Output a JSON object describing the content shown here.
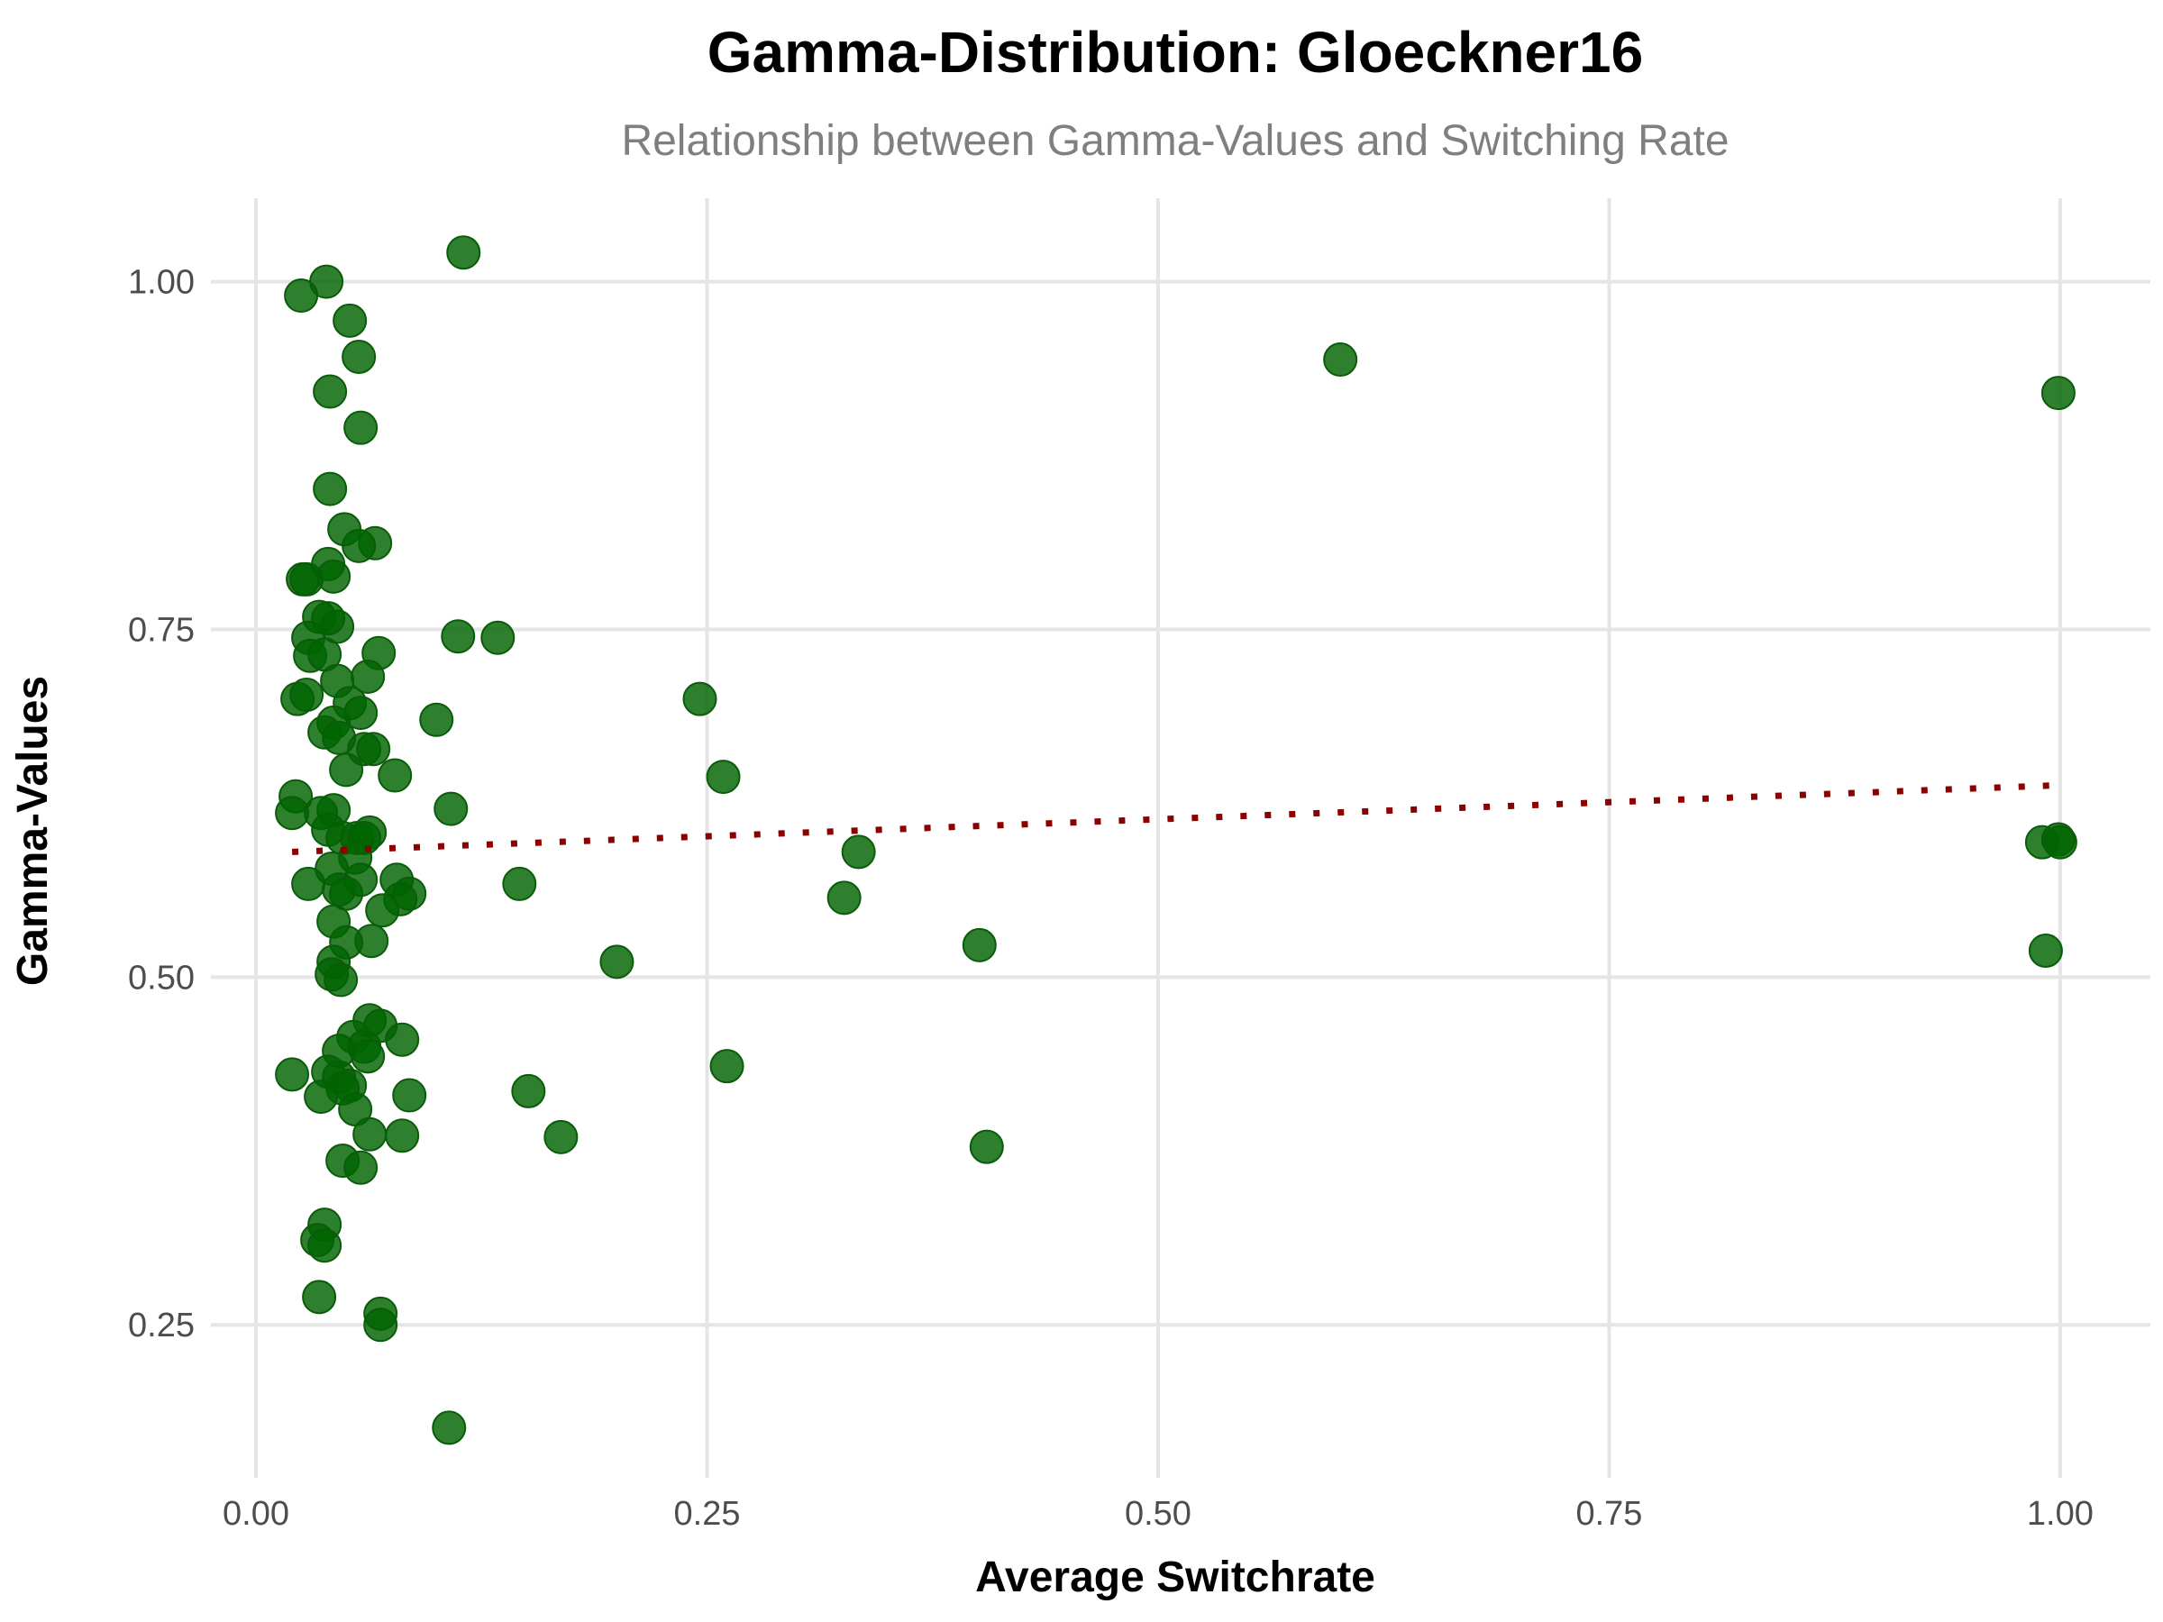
{
  "chart_data": {
    "type": "scatter",
    "title": "Gamma-Distribution: Gloeckner16",
    "subtitle": "Relationship between Gamma-Values and Switching Rate",
    "xlabel": "Average Switchrate",
    "ylabel": "Gamma-Values",
    "xlim": [
      -0.025,
      1.05
    ],
    "ylim": [
      0.14,
      1.06
    ],
    "xticks": [
      0.0,
      0.25,
      0.5,
      0.75,
      1.0
    ],
    "xtick_labels": [
      "0.00",
      "0.25",
      "0.50",
      "0.75",
      "1.00"
    ],
    "yticks": [
      0.25,
      0.5,
      0.75,
      1.0
    ],
    "ytick_labels": [
      "0.25",
      "0.50",
      "0.75",
      "1.00"
    ],
    "grid": true,
    "point_color": "#006400",
    "trend_color": "#8b0000",
    "trend_line": {
      "x": [
        0.02,
        1.0
      ],
      "y": [
        0.59,
        0.638
      ]
    },
    "points": [
      [
        0.039,
        1.0
      ],
      [
        0.025,
        0.99
      ],
      [
        0.052,
        0.972
      ],
      [
        0.057,
        0.946
      ],
      [
        0.041,
        0.921
      ],
      [
        0.058,
        0.895
      ],
      [
        0.041,
        0.851
      ],
      [
        0.049,
        0.822
      ],
      [
        0.066,
        0.812
      ],
      [
        0.057,
        0.81
      ],
      [
        0.026,
        0.786
      ],
      [
        0.028,
        0.786
      ],
      [
        0.04,
        0.797
      ],
      [
        0.043,
        0.788
      ],
      [
        0.035,
        0.759
      ],
      [
        0.045,
        0.752
      ],
      [
        0.04,
        0.758
      ],
      [
        0.029,
        0.744
      ],
      [
        0.03,
        0.731
      ],
      [
        0.038,
        0.732
      ],
      [
        0.068,
        0.733
      ],
      [
        0.062,
        0.716
      ],
      [
        0.045,
        0.713
      ],
      [
        0.023,
        0.7
      ],
      [
        0.028,
        0.703
      ],
      [
        0.052,
        0.697
      ],
      [
        0.058,
        0.69
      ],
      [
        0.043,
        0.683
      ],
      [
        0.038,
        0.676
      ],
      [
        0.046,
        0.672
      ],
      [
        0.06,
        0.664
      ],
      [
        0.065,
        0.664
      ],
      [
        0.05,
        0.649
      ],
      [
        0.077,
        0.645
      ],
      [
        0.022,
        0.63
      ],
      [
        0.02,
        0.618
      ],
      [
        0.043,
        0.62
      ],
      [
        0.036,
        0.618
      ],
      [
        0.04,
        0.606
      ],
      [
        0.048,
        0.6
      ],
      [
        0.056,
        0.6
      ],
      [
        0.063,
        0.604
      ],
      [
        0.06,
        0.6
      ],
      [
        0.055,
        0.586
      ],
      [
        0.042,
        0.578
      ],
      [
        0.058,
        0.57
      ],
      [
        0.029,
        0.567
      ],
      [
        0.046,
        0.563
      ],
      [
        0.05,
        0.56
      ],
      [
        0.078,
        0.57
      ],
      [
        0.085,
        0.56
      ],
      [
        0.08,
        0.556
      ],
      [
        0.07,
        0.548
      ],
      [
        0.043,
        0.54
      ],
      [
        0.064,
        0.526
      ],
      [
        0.05,
        0.525
      ],
      [
        0.043,
        0.511
      ],
      [
        0.042,
        0.502
      ],
      [
        0.047,
        0.498
      ],
      [
        0.063,
        0.469
      ],
      [
        0.069,
        0.465
      ],
      [
        0.054,
        0.457
      ],
      [
        0.081,
        0.455
      ],
      [
        0.06,
        0.45
      ],
      [
        0.046,
        0.447
      ],
      [
        0.062,
        0.443
      ],
      [
        0.02,
        0.43
      ],
      [
        0.04,
        0.432
      ],
      [
        0.046,
        0.428
      ],
      [
        0.052,
        0.422
      ],
      [
        0.048,
        0.42
      ],
      [
        0.036,
        0.414
      ],
      [
        0.085,
        0.415
      ],
      [
        0.055,
        0.405
      ],
      [
        0.063,
        0.387
      ],
      [
        0.081,
        0.386
      ],
      [
        0.048,
        0.368
      ],
      [
        0.058,
        0.363
      ],
      [
        0.038,
        0.322
      ],
      [
        0.034,
        0.311
      ],
      [
        0.038,
        0.307
      ],
      [
        0.035,
        0.27
      ],
      [
        0.069,
        0.258
      ],
      [
        0.069,
        0.25
      ],
      [
        0.107,
        0.176
      ],
      [
        0.115,
        1.021
      ],
      [
        0.112,
        0.745
      ],
      [
        0.134,
        0.744
      ],
      [
        0.1,
        0.685
      ],
      [
        0.108,
        0.621
      ],
      [
        0.146,
        0.567
      ],
      [
        0.151,
        0.418
      ],
      [
        0.169,
        0.385
      ],
      [
        0.2,
        0.511
      ],
      [
        0.246,
        0.7
      ],
      [
        0.259,
        0.644
      ],
      [
        0.261,
        0.436
      ],
      [
        0.334,
        0.59
      ],
      [
        0.326,
        0.557
      ],
      [
        0.401,
        0.523
      ],
      [
        0.405,
        0.378
      ],
      [
        0.601,
        0.944
      ],
      [
        0.999,
        0.92
      ],
      [
        0.99,
        0.597
      ],
      [
        0.999,
        0.599
      ],
      [
        1.0,
        0.597
      ],
      [
        0.992,
        0.519
      ]
    ]
  }
}
